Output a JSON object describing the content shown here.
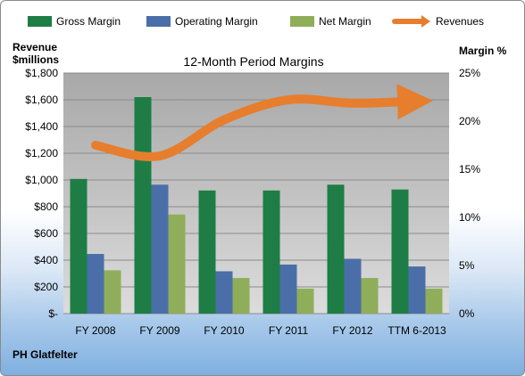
{
  "chart_data": {
    "type": "bar",
    "title": "12-Month Period Margins",
    "company": "PH Glatfelter",
    "left_axis_title": [
      "Revenue",
      "$millions"
    ],
    "right_axis_title": "Margin %",
    "left_ticks": [
      "$-",
      "$200",
      "$400",
      "$600",
      "$800",
      "$1,000",
      "$1,200",
      "$1,400",
      "$1,600",
      "$1,800"
    ],
    "right_ticks": [
      "0%",
      "5%",
      "10%",
      "15%",
      "20%",
      "25%"
    ],
    "ylim_left": [
      0,
      1800
    ],
    "ylim_right": [
      0,
      25
    ],
    "categories": [
      "FY 2008",
      "FY 2009",
      "FY 2010",
      "FY 2011",
      "FY 2012",
      "TTM 6-2013"
    ],
    "series": [
      {
        "name": "Gross Margin",
        "axis": "right",
        "color": "#1e7d45",
        "values": [
          14.0,
          22.5,
          12.8,
          12.8,
          13.4,
          12.9
        ]
      },
      {
        "name": "Operating Margin",
        "axis": "right",
        "color": "#4a6fa8",
        "values": [
          6.2,
          13.4,
          4.4,
          5.1,
          5.7,
          4.9
        ]
      },
      {
        "name": "Net Margin",
        "axis": "right",
        "color": "#8fae5a",
        "values": [
          4.5,
          10.3,
          3.7,
          2.6,
          3.7,
          2.6
        ]
      },
      {
        "name": "Revenues",
        "axis": "left",
        "type": "line",
        "color": "#e67e2e",
        "values": [
          1260,
          1180,
          1450,
          1600,
          1575,
          1590
        ]
      }
    ],
    "legend_position": "top",
    "grid": true
  }
}
